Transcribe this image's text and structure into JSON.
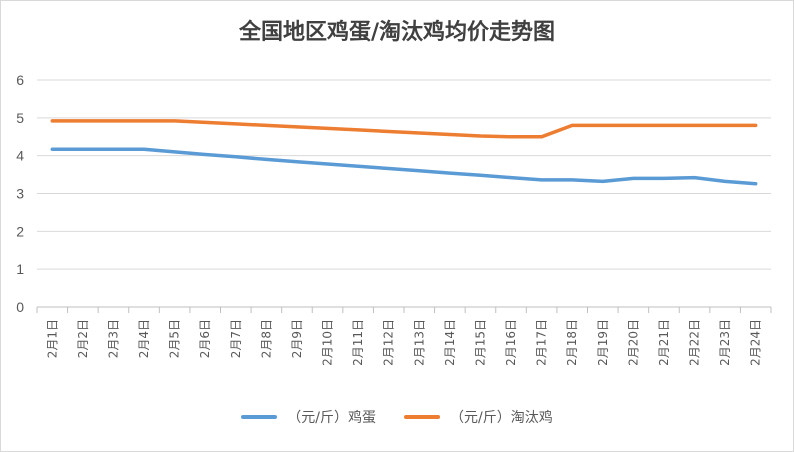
{
  "chart_data": {
    "type": "line",
    "title": "全国地区鸡蛋/淘汰鸡均价走势图",
    "categories": [
      "2月1日",
      "2月2日",
      "2月3日",
      "2月4日",
      "2月5日",
      "2月6日",
      "2月7日",
      "2月8日",
      "2月9日",
      "2月10日",
      "2月11日",
      "2月12日",
      "2月13日",
      "2月14日",
      "2月15日",
      "2月16日",
      "2月17日",
      "2月18日",
      "2月19日",
      "2月20日",
      "2月21日",
      "2月22日",
      "2月23日",
      "2月24日"
    ],
    "ylim": [
      0,
      6
    ],
    "yticks": [
      0,
      1,
      2,
      3,
      4,
      5,
      6
    ],
    "grid": true,
    "legend_position": "bottom",
    "series": [
      {
        "name": "（元/斤）鸡蛋",
        "color": "#5b9bd5",
        "values": [
          4.17,
          4.17,
          4.17,
          4.17,
          4.1,
          4.03,
          3.97,
          3.9,
          3.84,
          3.78,
          3.72,
          3.66,
          3.6,
          3.54,
          3.48,
          3.42,
          3.36,
          3.36,
          3.32,
          3.4,
          3.4,
          3.42,
          3.32,
          3.26
        ]
      },
      {
        "name": "（元/斤）淘汰鸡",
        "color": "#ed7d31",
        "values": [
          4.92,
          4.92,
          4.92,
          4.92,
          4.92,
          4.88,
          4.84,
          4.8,
          4.76,
          4.72,
          4.68,
          4.64,
          4.6,
          4.56,
          4.52,
          4.5,
          4.5,
          4.8,
          4.8,
          4.8,
          4.8,
          4.8,
          4.8,
          4.8
        ]
      }
    ]
  }
}
